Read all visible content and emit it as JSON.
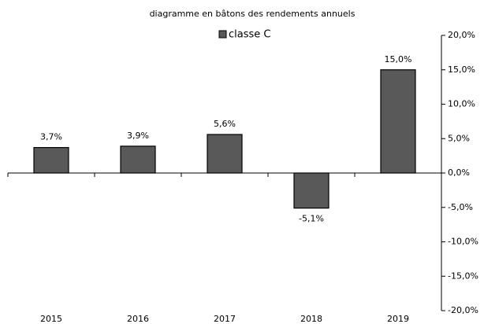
{
  "chart_data": {
    "type": "bar",
    "title": "diagramme en bâtons des rendements annuels",
    "categories": [
      "2015",
      "2016",
      "2017",
      "2018",
      "2019"
    ],
    "series": [
      {
        "name": "classe C",
        "color": "#595959",
        "values": [
          3.7,
          3.9,
          5.6,
          -5.1,
          15.0
        ],
        "value_labels": [
          "3,7%",
          "3,9%",
          "5,6%",
          "-5,1%",
          "15,0%"
        ]
      }
    ],
    "ylim": [
      -20,
      20
    ],
    "yticks": [
      {
        "value": -20,
        "label": "-20,0%"
      },
      {
        "value": -15,
        "label": "-15,0%"
      },
      {
        "value": -10,
        "label": "-10,0%"
      },
      {
        "value": -5,
        "label": "-5,0%"
      },
      {
        "value": 0,
        "label": "0,0%"
      },
      {
        "value": 5,
        "label": "5,0%"
      },
      {
        "value": 10,
        "label": "10,0%"
      },
      {
        "value": 15,
        "label": "15,0%"
      },
      {
        "value": 20,
        "label": "20,0%"
      }
    ],
    "grid": false,
    "legend": "top"
  }
}
